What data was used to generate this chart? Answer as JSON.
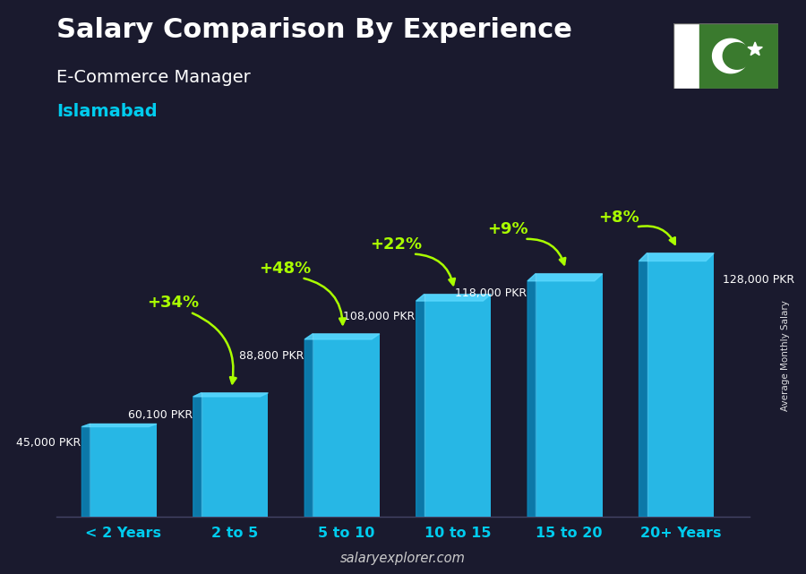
{
  "title": "Salary Comparison By Experience",
  "subtitle": "E-Commerce Manager",
  "location": "Islamabad",
  "ylabel": "Average Monthly Salary",
  "watermark": "salaryexplorer.com",
  "categories": [
    "< 2 Years",
    "2 to 5",
    "5 to 10",
    "10 to 15",
    "15 to 20",
    "20+ Years"
  ],
  "values": [
    45000,
    60100,
    88800,
    108000,
    118000,
    128000
  ],
  "value_labels": [
    "45,000 PKR",
    "60,100 PKR",
    "88,800 PKR",
    "108,000 PKR",
    "118,000 PKR",
    "128,000 PKR"
  ],
  "pct_changes": [
    null,
    "+34%",
    "+48%",
    "+22%",
    "+9%",
    "+8%"
  ],
  "bar_face_color": "#29c5f6",
  "bar_left_color": "#0a8abf",
  "bar_top_color": "#5dd9ff",
  "bar_shadow_color": "#1a9ec5",
  "background_color": "#1a1a2e",
  "title_color": "#ffffff",
  "subtitle_color": "#ffffff",
  "location_color": "#00ccee",
  "label_color": "#ffffff",
  "pct_color": "#aaff00",
  "arrow_color": "#aaff00",
  "category_color": "#00ccee",
  "watermark_color": "#cccccc",
  "ylim_max": 145000,
  "figsize": [
    9.0,
    6.41
  ],
  "dpi": 100
}
